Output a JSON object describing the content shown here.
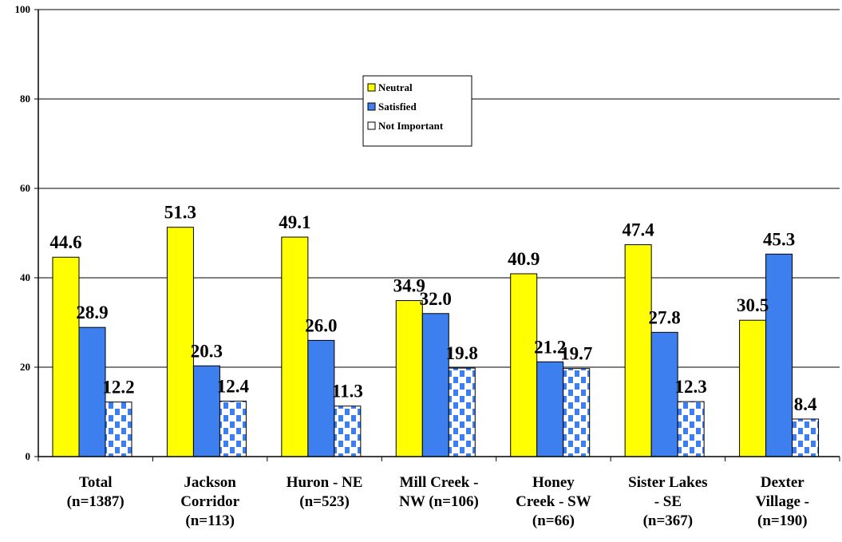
{
  "chart_data": {
    "type": "bar",
    "title": "",
    "xlabel": "",
    "ylabel": "",
    "ylim": [
      0,
      100
    ],
    "yticks": [
      0,
      20,
      40,
      60,
      80,
      100
    ],
    "grid": true,
    "legend_position": "top-center",
    "categories": [
      [
        "Total",
        "(n=1387)"
      ],
      [
        "Jackson",
        "Corridor",
        "(n=113)"
      ],
      [
        "Huron - NE",
        "(n=523)"
      ],
      [
        "Mill Creek -",
        "NW (n=106)"
      ],
      [
        "Honey",
        "Creek - SW",
        "(n=66)"
      ],
      [
        "Sister Lakes",
        "- SE",
        "(n=367)"
      ],
      [
        "Dexter",
        "Village -",
        "(n=190)"
      ]
    ],
    "series": [
      {
        "name": "Neutral",
        "color": "#ffff00",
        "pattern": "solid",
        "values": [
          44.6,
          51.3,
          49.1,
          34.9,
          40.9,
          47.4,
          30.5
        ],
        "labels": [
          "44.6",
          "51.3",
          "49.1",
          "34.9",
          "40.9",
          "47.4",
          "30.5"
        ]
      },
      {
        "name": "Satisfied",
        "color": "#3d7fef",
        "pattern": "solid",
        "values": [
          28.9,
          20.3,
          26.0,
          32.0,
          21.2,
          27.8,
          45.3
        ],
        "labels": [
          "28.9",
          "20.3",
          "26.0",
          "32.0",
          "21.2",
          "27.8",
          "45.3"
        ]
      },
      {
        "name": "Not Important",
        "color": "#ffffff",
        "pattern": "blue-blocks",
        "values": [
          12.2,
          12.4,
          11.3,
          19.8,
          19.7,
          12.3,
          8.4
        ],
        "labels": [
          "12.2",
          "12.4",
          "11.3",
          "19.8",
          "19.7",
          "12.3",
          "8.4"
        ]
      }
    ]
  }
}
